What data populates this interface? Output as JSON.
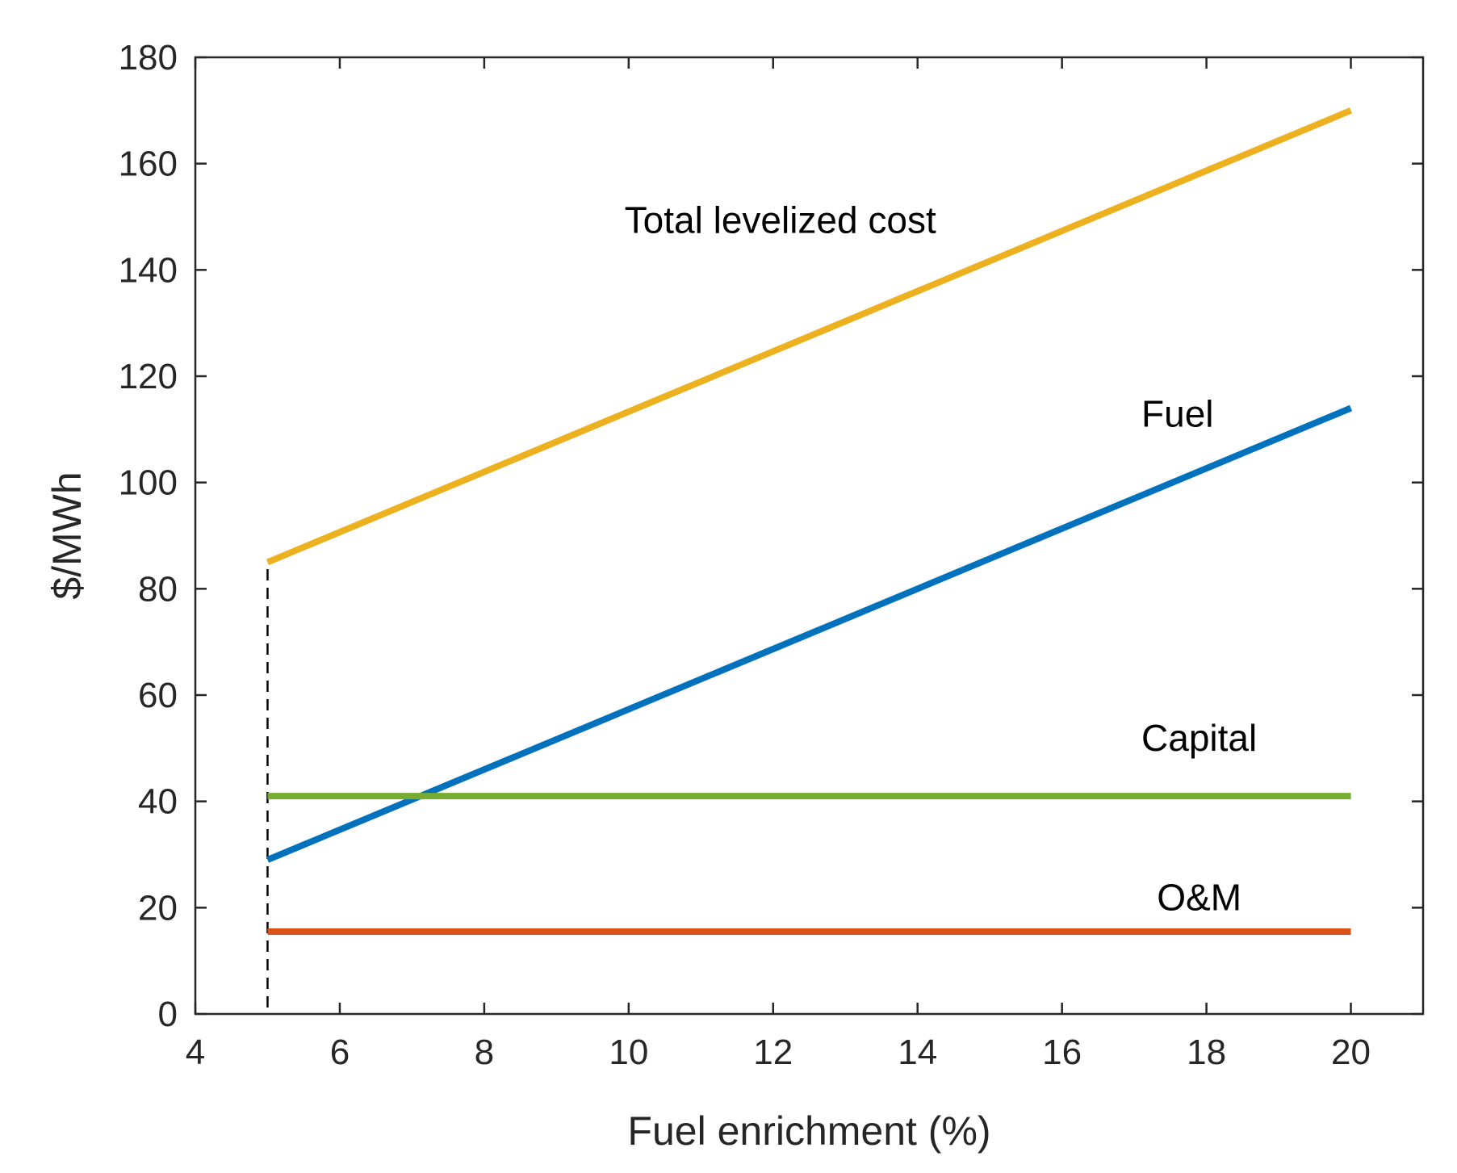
{
  "chart_data": {
    "type": "line",
    "xlabel": "Fuel enrichment (%)",
    "ylabel": "$/MWh",
    "xlim": [
      4,
      21
    ],
    "ylim": [
      0,
      180
    ],
    "xticks": [
      4,
      6,
      8,
      10,
      12,
      14,
      16,
      18,
      20
    ],
    "yticks": [
      0,
      20,
      40,
      60,
      80,
      100,
      120,
      140,
      160,
      180
    ],
    "grid": false,
    "series": [
      {
        "id": "total",
        "name": "Total levelized cost",
        "color": "#EDB120",
        "x": [
          5,
          20
        ],
        "y": [
          85,
          170
        ]
      },
      {
        "id": "fuel",
        "name": "Fuel",
        "color": "#0072BD",
        "x": [
          5,
          20
        ],
        "y": [
          29,
          114
        ]
      },
      {
        "id": "capital",
        "name": "Capital",
        "color": "#77AC30",
        "x": [
          5,
          20
        ],
        "y": [
          41,
          41
        ]
      },
      {
        "id": "om",
        "name": "O&M",
        "color": "#D95319",
        "x": [
          5,
          20
        ],
        "y": [
          15.5,
          15.5
        ]
      }
    ],
    "reference_line": {
      "x": 5,
      "y": [
        0,
        85
      ],
      "style": "dashed",
      "color": "#000000"
    },
    "annotations": [
      {
        "series": "total",
        "text": "Total levelized cost",
        "x": 12.1,
        "y": 147
      },
      {
        "series": "fuel",
        "text": "Fuel",
        "x": 17.6,
        "y": 110.5
      },
      {
        "series": "capital",
        "text": "Capital",
        "x": 17.9,
        "y": 49.5
      },
      {
        "series": "om",
        "text": "O&M",
        "x": 17.9,
        "y": 19.5
      }
    ]
  }
}
